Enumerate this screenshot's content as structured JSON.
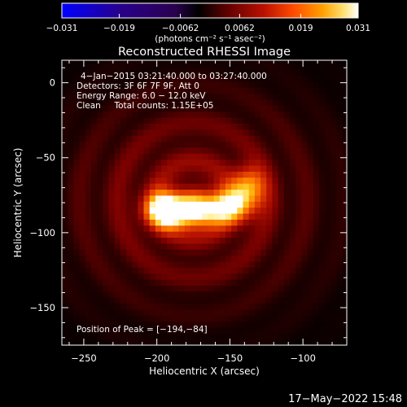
{
  "colors": {
    "background": "#000000",
    "text": "#ffffff"
  },
  "colorbar": {
    "tick_labels": [
      "−0.031",
      "−0.019",
      "−0.0062",
      "0.0062",
      "0.019",
      "0.031"
    ],
    "tick_values": [
      -0.031,
      -0.019,
      -0.0062,
      0.0062,
      0.019,
      0.031
    ],
    "range": [
      -0.031,
      0.031
    ],
    "units": "(photons cm⁻² s⁻¹ asec⁻²)",
    "colors": [
      "#0000ff",
      "#200070",
      "#3a006b",
      "#000000",
      "#7a0000",
      "#c81600",
      "#ff5a00",
      "#ffa800",
      "#ffe060",
      "#ffffff"
    ]
  },
  "footer": {
    "timestamp": "17−May−2022 15:48"
  },
  "chart_data": {
    "type": "heatmap",
    "title": "Reconstructed RHESSI Image",
    "xlabel": "Heliocentric X (arcsec)",
    "ylabel": "Heliocentric Y (arcsec)",
    "xlim": [
      -265,
      -70
    ],
    "ylim": [
      -175,
      15
    ],
    "x_ticks": [
      -250,
      -200,
      -150,
      -100
    ],
    "y_ticks": [
      0,
      -50,
      -100,
      -150
    ],
    "x_tick_labels": [
      "−250",
      "−200",
      "−150",
      "−100"
    ],
    "y_tick_labels": [
      "0",
      "−50",
      "−100",
      "−150"
    ],
    "annotations": [
      "4−Jan−2015 03:21:40.000 to 03:27:40.000",
      "Detectors: 3F 6F 7F 9F, Att 0",
      "Energy Range: 6.0 − 12.0 keV",
      "Clean     Total counts: 1.15E+05"
    ],
    "peak_label": "Position of Peak = [−194,−84]",
    "peak_position": [
      -194,
      -84
    ],
    "sources": [
      {
        "x": -194,
        "y": -84,
        "amp": 0.031,
        "sx": 9,
        "sy": 8
      },
      {
        "x": -176,
        "y": -86,
        "amp": 0.024,
        "sx": 13,
        "sy": 7
      },
      {
        "x": -152,
        "y": -82,
        "amp": 0.022,
        "sx": 12,
        "sy": 8
      },
      {
        "x": -137,
        "y": -69,
        "amp": 0.018,
        "sx": 8,
        "sy": 9
      }
    ],
    "diffuse_level": 0.011,
    "diffuse_center": [
      -175,
      -78
    ],
    "diffuse_width": [
      70,
      55
    ]
  }
}
